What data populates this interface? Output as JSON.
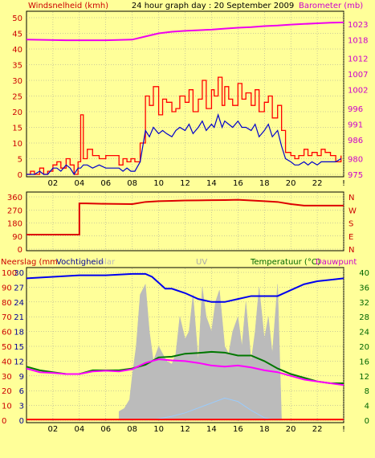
{
  "colors": {
    "background": "#ffff99",
    "plot_bg": "#ffff99",
    "wind_gust": "#ff0000",
    "wind_avg": "#0000cc",
    "barometer": "#ee00ee",
    "direction": "#dd0000",
    "humidity": "#0000ee",
    "temperature": "#007700",
    "dewpoint": "#ff00ff",
    "solar": "#bbbbbb",
    "uv": "#99ccff",
    "rain": "#ff0000",
    "left_label": "#cc0000",
    "right_label": "#cc00cc",
    "temp_axis_label": "#006600"
  },
  "chart_data": [
    {
      "type": "line",
      "title": "24 hour graph day : 20 September 2009",
      "y_left_label": "Windsnelheid (kmh)",
      "y_right_label": "Barometer (mb)",
      "x_ticks": [
        "02",
        "04",
        "06",
        "08",
        "10",
        "12",
        "14",
        "16",
        "18",
        "20",
        "22",
        "!"
      ],
      "y_left_ticks": [
        "0",
        "5",
        "10",
        "15",
        "20",
        "25",
        "30",
        "35",
        "40",
        "45",
        "50"
      ],
      "y_right_ticks": [
        "975",
        "980",
        "986",
        "991",
        "996",
        "1002",
        "1007",
        "1012",
        "1018",
        "1023"
      ],
      "ylim_left": [
        0,
        50
      ],
      "ylim_right": [
        975,
        1025
      ],
      "series": [
        {
          "key": "gust",
          "x": [
            0,
            0.3,
            0.6,
            1,
            1.3,
            1.6,
            2,
            2.3,
            2.6,
            3,
            3.3,
            3.6,
            3.9,
            4.1,
            4.3,
            4.6,
            5,
            5.5,
            6,
            6.5,
            7,
            7.3,
            7.6,
            7.9,
            8.2,
            8.6,
            9,
            9.3,
            9.6,
            10,
            10.3,
            10.6,
            11,
            11.3,
            11.6,
            12,
            12.3,
            12.6,
            13,
            13.3,
            13.6,
            14,
            14.2,
            14.5,
            14.8,
            15,
            15.3,
            15.6,
            16,
            16.3,
            16.6,
            17,
            17.3,
            17.6,
            18,
            18.3,
            18.6,
            19,
            19.3,
            19.6,
            20,
            20.3,
            20.6,
            21,
            21.3,
            21.6,
            22,
            22.3,
            22.6,
            23,
            23.4,
            23.8
          ],
          "y": [
            0,
            1,
            0,
            2,
            0,
            1,
            3,
            4,
            2,
            5,
            3,
            0,
            4,
            19,
            5,
            8,
            6,
            5,
            6,
            6,
            3,
            5,
            4,
            5,
            4,
            10,
            25,
            22,
            28,
            19,
            24,
            23,
            20,
            21,
            25,
            23,
            27,
            20,
            24,
            30,
            21,
            27,
            25,
            31,
            22,
            28,
            24,
            22,
            29,
            24,
            26,
            22,
            27,
            20,
            23,
            25,
            18,
            22,
            14,
            7,
            6,
            5,
            6,
            8,
            6,
            7,
            6,
            8,
            7,
            6,
            4,
            6
          ]
        },
        {
          "key": "avg",
          "x": [
            0,
            0.3,
            0.6,
            1,
            1.3,
            1.6,
            2,
            2.3,
            2.6,
            3,
            3.3,
            3.6,
            3.9,
            4.1,
            4.3,
            4.6,
            5,
            5.5,
            6,
            6.5,
            7,
            7.3,
            7.6,
            7.9,
            8.2,
            8.6,
            9,
            9.3,
            9.6,
            10,
            10.3,
            10.6,
            11,
            11.3,
            11.6,
            12,
            12.3,
            12.6,
            13,
            13.3,
            13.6,
            14,
            14.2,
            14.5,
            14.8,
            15,
            15.3,
            15.6,
            16,
            16.3,
            16.6,
            17,
            17.3,
            17.6,
            18,
            18.3,
            18.6,
            19,
            19.3,
            19.6,
            20,
            20.3,
            20.6,
            21,
            21.3,
            21.6,
            22,
            22.3,
            22.6,
            23,
            23.4,
            23.8
          ],
          "y": [
            0,
            0,
            0,
            1,
            0,
            0,
            2,
            2,
            1,
            3,
            2,
            0,
            2,
            2,
            3,
            3,
            2,
            3,
            2,
            2,
            2,
            1,
            2,
            1,
            1,
            4,
            14,
            12,
            15,
            13,
            14,
            13,
            12,
            14,
            15,
            14,
            16,
            13,
            15,
            17,
            14,
            16,
            15,
            19,
            15,
            17,
            16,
            15,
            17,
            15,
            15,
            14,
            16,
            12,
            14,
            16,
            12,
            14,
            9,
            5,
            4,
            3,
            3,
            4,
            3,
            4,
            3,
            4,
            4,
            4,
            4,
            5
          ]
        },
        {
          "key": "baro",
          "x": [
            0,
            3,
            6,
            8,
            9,
            10,
            11,
            12,
            13,
            14,
            15,
            16,
            17,
            18,
            19,
            20,
            21,
            22,
            23,
            24
          ],
          "y": [
            1018,
            1017.8,
            1017.8,
            1018,
            1019,
            1020,
            1020.5,
            1020.8,
            1021,
            1021.2,
            1021.5,
            1021.8,
            1022,
            1022.3,
            1022.5,
            1022.8,
            1023,
            1023.2,
            1023.4,
            1023.5
          ]
        }
      ]
    },
    {
      "type": "line",
      "y_left_ticks": [
        "360",
        "270",
        "180",
        "90",
        "0"
      ],
      "y_right_ticks": [
        "N",
        "W",
        "S",
        "E",
        "N"
      ],
      "ylim": [
        0,
        360
      ],
      "series": [
        {
          "key": "dir",
          "x": [
            0,
            4,
            4,
            4.5,
            6,
            8,
            9,
            10,
            11,
            12,
            13,
            14,
            15,
            16,
            17,
            18,
            19,
            20,
            21,
            22,
            23,
            24
          ],
          "y": [
            100,
            100,
            315,
            315,
            312,
            310,
            325,
            330,
            332,
            335,
            336,
            337,
            338,
            340,
            335,
            330,
            325,
            310,
            300,
            300,
            300,
            300
          ]
        }
      ]
    },
    {
      "type": "line",
      "y_left_label": "Neerslag (mm",
      "y_left_label2": "Vochtigheid",
      "y_solar_label": "olar",
      "y_uv_label": "UV",
      "y_temp_label": "Temperatuur (°C)",
      "y_dew_label": "Dauwpunt",
      "x_ticks": [
        "02",
        "04",
        "06",
        "08",
        "10",
        "12",
        "14",
        "16",
        "18",
        "20",
        "22",
        "!"
      ],
      "y_left_ticks": [
        "0",
        "10",
        "20",
        "30",
        "40",
        "50",
        "60",
        "70",
        "80",
        "90",
        "100"
      ],
      "y_mid_ticks": [
        "0",
        "3",
        "6",
        "9",
        "12",
        "15",
        "18",
        "21",
        "24",
        "27",
        "30"
      ],
      "y_right_ticks": [
        "0",
        "4",
        "8",
        "12",
        "16",
        "20",
        "24",
        "28",
        "32",
        "36",
        "40"
      ],
      "ylim_left": [
        0,
        100
      ],
      "ylim_right": [
        0,
        40
      ],
      "series": [
        {
          "key": "hum",
          "x": [
            0,
            2,
            4,
            6,
            8,
            8.5,
            9,
            9.5,
            10,
            10.5,
            11,
            12,
            13,
            14,
            15,
            16,
            17,
            18,
            19,
            20,
            21,
            22,
            23,
            24
          ],
          "y": [
            96,
            97,
            98,
            98,
            99,
            99,
            99,
            97,
            93,
            89,
            89,
            86,
            82,
            80,
            80,
            82,
            84,
            84,
            84,
            88,
            92,
            94,
            95,
            96
          ]
        },
        {
          "key": "temp",
          "x": [
            0,
            1,
            2,
            3,
            4,
            5,
            6,
            7,
            8,
            9,
            10,
            11,
            12,
            13,
            14,
            15,
            16,
            17,
            18,
            19,
            20,
            21,
            22,
            23,
            24
          ],
          "y": [
            14.5,
            13.5,
            13,
            12.5,
            12.5,
            13.5,
            13.5,
            13.5,
            14,
            15,
            17,
            17.2,
            18,
            18.2,
            18.5,
            18.3,
            17.5,
            17.5,
            16,
            14,
            12.5,
            11.5,
            10.5,
            10,
            10
          ]
        },
        {
          "key": "dew",
          "x": [
            0,
            1,
            2,
            3,
            4,
            5,
            6,
            7,
            8,
            9,
            10,
            11,
            12,
            13,
            14,
            15,
            16,
            17,
            18,
            19,
            20,
            21,
            22,
            23,
            24
          ],
          "y": [
            14,
            13,
            12.8,
            12.5,
            12.5,
            13.2,
            13.4,
            13.2,
            13.8,
            15.5,
            16.5,
            16.2,
            16,
            15.5,
            14.8,
            14.5,
            14.8,
            14.3,
            13.5,
            13,
            12,
            11,
            10.5,
            10,
            9.5
          ]
        },
        {
          "key": "solar",
          "x": [
            7,
            7.4,
            7.8,
            8,
            8.3,
            8.6,
            9,
            9.3,
            9.6,
            10,
            10.3,
            10.6,
            11,
            11.3,
            11.6,
            12,
            12.3,
            12.6,
            13,
            13.3,
            13.6,
            14,
            14.3,
            14.6,
            15,
            15.3,
            15.6,
            16,
            16.3,
            16.6,
            17,
            17.3,
            17.6,
            18,
            18.3,
            18.6,
            19,
            19.3
          ],
          "y": [
            6,
            8,
            14,
            30,
            50,
            85,
            92,
            60,
            40,
            50,
            45,
            40,
            38,
            45,
            70,
            55,
            60,
            85,
            40,
            90,
            70,
            60,
            80,
            88,
            50,
            45,
            60,
            70,
            50,
            80,
            40,
            60,
            90,
            55,
            70,
            45,
            92,
            0
          ]
        },
        {
          "key": "uv",
          "x": [
            9,
            10,
            11,
            12,
            13,
            14,
            15,
            16,
            17,
            18,
            19
          ],
          "y": [
            0,
            0.3,
            0.8,
            1.5,
            2.5,
            3.5,
            4.5,
            3.8,
            2,
            0.5,
            0
          ]
        },
        {
          "key": "rain",
          "x": [
            0,
            24
          ],
          "y": [
            0.5,
            0.5
          ]
        }
      ]
    }
  ]
}
